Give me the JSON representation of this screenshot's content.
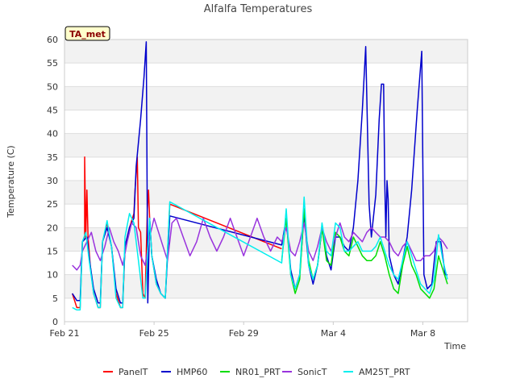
{
  "chart_data": {
    "type": "line",
    "title": "Alfalfa Temperatures",
    "xlabel": "Time",
    "ylabel": "Temperature (C)",
    "annotation": "TA_met",
    "ylim": [
      0,
      60
    ],
    "y_ticks": [
      0,
      5,
      10,
      15,
      20,
      25,
      30,
      35,
      40,
      45,
      50,
      55,
      60
    ],
    "xlim": [
      0,
      18
    ],
    "x_ticks": [
      {
        "value": 0,
        "label": "Feb 21"
      },
      {
        "value": 4,
        "label": "Feb 25"
      },
      {
        "value": 8,
        "label": "Feb 29"
      },
      {
        "value": 12,
        "label": "Mar 4"
      },
      {
        "value": 16,
        "label": "Mar 8"
      }
    ],
    "x_unit": "days since Feb 21",
    "grid": true,
    "legend_position": "bottom",
    "series": [
      {
        "name": "PanelT",
        "color": "#ff0000",
        "points": [
          [
            0.35,
            6
          ],
          [
            0.55,
            3
          ],
          [
            0.7,
            3
          ],
          [
            0.8,
            17
          ],
          [
            0.9,
            18
          ],
          [
            0.9,
            35
          ],
          [
            0.95,
            18
          ],
          [
            1.0,
            28
          ],
          [
            1.05,
            18
          ],
          [
            1.15,
            12
          ],
          [
            1.3,
            6
          ],
          [
            1.5,
            3
          ],
          [
            1.6,
            3
          ],
          [
            1.7,
            17
          ],
          [
            1.9,
            21
          ],
          [
            2.1,
            16
          ],
          [
            2.3,
            6
          ],
          [
            2.5,
            3
          ],
          [
            2.6,
            3
          ],
          [
            2.7,
            16
          ],
          [
            2.9,
            20
          ],
          [
            3.1,
            23
          ],
          [
            3.15,
            28
          ],
          [
            3.25,
            35
          ],
          [
            3.3,
            20
          ],
          [
            3.4,
            19
          ],
          [
            3.5,
            6
          ],
          [
            3.6,
            5
          ],
          [
            3.7,
            24
          ],
          [
            3.75,
            28
          ],
          [
            3.8,
            22
          ],
          [
            3.9,
            14
          ],
          [
            4.1,
            8
          ],
          [
            4.3,
            6
          ],
          [
            4.5,
            5
          ],
          [
            4.7,
            25
          ],
          [
            9.7,
            15.5
          ]
        ]
      },
      {
        "name": "HMP60",
        "color": "#0000cc",
        "points": [
          [
            0.35,
            6
          ],
          [
            0.55,
            4.5
          ],
          [
            0.7,
            4.5
          ],
          [
            0.8,
            17
          ],
          [
            1.0,
            18
          ],
          [
            1.15,
            12
          ],
          [
            1.3,
            7
          ],
          [
            1.5,
            4
          ],
          [
            1.6,
            4
          ],
          [
            1.7,
            17
          ],
          [
            1.9,
            20
          ],
          [
            2.1,
            16
          ],
          [
            2.3,
            7
          ],
          [
            2.5,
            4
          ],
          [
            2.6,
            4
          ],
          [
            2.7,
            16
          ],
          [
            2.9,
            20
          ],
          [
            3.1,
            22
          ],
          [
            3.2,
            33
          ],
          [
            3.4,
            43
          ],
          [
            3.55,
            52
          ],
          [
            3.65,
            59.5
          ],
          [
            3.72,
            4
          ],
          [
            3.8,
            22
          ],
          [
            3.9,
            14
          ],
          [
            4.1,
            9
          ],
          [
            4.3,
            6
          ],
          [
            4.5,
            5
          ],
          [
            4.7,
            22.5
          ],
          [
            9.7,
            16.3
          ],
          [
            9.9,
            22
          ],
          [
            10.1,
            11
          ],
          [
            10.3,
            7
          ],
          [
            10.5,
            10
          ],
          [
            10.7,
            23
          ],
          [
            10.9,
            12
          ],
          [
            11.1,
            8
          ],
          [
            11.3,
            12
          ],
          [
            11.5,
            20
          ],
          [
            11.7,
            14
          ],
          [
            11.9,
            11
          ],
          [
            12.1,
            18
          ],
          [
            12.3,
            18
          ],
          [
            12.5,
            16
          ],
          [
            12.7,
            15
          ],
          [
            12.9,
            20
          ],
          [
            13.1,
            30
          ],
          [
            13.3,
            45
          ],
          [
            13.45,
            58.5
          ],
          [
            13.6,
            25
          ],
          [
            13.7,
            18
          ],
          [
            13.9,
            27
          ],
          [
            14.05,
            43
          ],
          [
            14.15,
            50.5
          ],
          [
            14.25,
            50.5
          ],
          [
            14.3,
            30
          ],
          [
            14.35,
            18
          ],
          [
            14.4,
            30
          ],
          [
            14.45,
            26
          ],
          [
            14.5,
            14
          ],
          [
            14.7,
            10
          ],
          [
            14.9,
            8
          ],
          [
            15.1,
            13
          ],
          [
            15.3,
            18
          ],
          [
            15.5,
            28
          ],
          [
            15.75,
            45
          ],
          [
            15.95,
            57.5
          ],
          [
            16.05,
            10
          ],
          [
            16.2,
            7
          ],
          [
            16.4,
            8
          ],
          [
            16.6,
            17
          ],
          [
            16.8,
            17
          ],
          [
            17.0,
            10
          ],
          [
            17.1,
            10
          ]
        ]
      },
      {
        "name": "NR01_PRT",
        "color": "#00dd00",
        "points": [
          [
            9.7,
            13
          ],
          [
            9.9,
            22
          ],
          [
            10.1,
            10
          ],
          [
            10.3,
            6
          ],
          [
            10.5,
            9
          ],
          [
            10.7,
            24
          ],
          [
            10.9,
            13
          ],
          [
            11.1,
            9
          ],
          [
            11.3,
            12
          ],
          [
            11.5,
            20
          ],
          [
            11.7,
            13
          ],
          [
            11.9,
            12
          ],
          [
            12.1,
            19
          ],
          [
            12.3,
            18
          ],
          [
            12.5,
            15
          ],
          [
            12.7,
            14
          ],
          [
            12.9,
            18
          ],
          [
            13.1,
            16
          ],
          [
            13.3,
            14
          ],
          [
            13.5,
            13
          ],
          [
            13.7,
            13
          ],
          [
            13.9,
            14
          ],
          [
            14.1,
            17
          ],
          [
            14.3,
            14
          ],
          [
            14.5,
            10
          ],
          [
            14.7,
            7
          ],
          [
            14.9,
            6
          ],
          [
            15.1,
            12
          ],
          [
            15.3,
            16
          ],
          [
            15.5,
            12
          ],
          [
            15.7,
            10
          ],
          [
            15.9,
            7
          ],
          [
            16.1,
            6
          ],
          [
            16.3,
            5
          ],
          [
            16.5,
            7
          ],
          [
            16.7,
            14
          ],
          [
            16.9,
            11
          ],
          [
            17.1,
            8
          ]
        ]
      },
      {
        "name": "SonicT",
        "color": "#9933dd",
        "points": [
          [
            0.35,
            12
          ],
          [
            0.55,
            11
          ],
          [
            0.7,
            12
          ],
          [
            0.8,
            15
          ],
          [
            1.0,
            17
          ],
          [
            1.2,
            19
          ],
          [
            1.4,
            15
          ],
          [
            1.6,
            13
          ],
          [
            1.8,
            16
          ],
          [
            2.0,
            20
          ],
          [
            2.2,
            17
          ],
          [
            2.4,
            15
          ],
          [
            2.6,
            12
          ],
          [
            2.8,
            17
          ],
          [
            3.0,
            21
          ],
          [
            3.2,
            20
          ],
          [
            3.4,
            14
          ],
          [
            3.6,
            12
          ],
          [
            3.8,
            18
          ],
          [
            4.0,
            22
          ],
          [
            4.2,
            19
          ],
          [
            4.4,
            16
          ],
          [
            4.6,
            13
          ],
          [
            4.8,
            21
          ],
          [
            5.0,
            22
          ],
          [
            5.3,
            18
          ],
          [
            5.6,
            14
          ],
          [
            5.9,
            17
          ],
          [
            6.2,
            22
          ],
          [
            6.5,
            18
          ],
          [
            6.8,
            15
          ],
          [
            7.1,
            18
          ],
          [
            7.4,
            22
          ],
          [
            7.7,
            18
          ],
          [
            8.0,
            14
          ],
          [
            8.3,
            18
          ],
          [
            8.6,
            22
          ],
          [
            8.9,
            18
          ],
          [
            9.2,
            15
          ],
          [
            9.5,
            18
          ],
          [
            9.7,
            17
          ],
          [
            9.9,
            20
          ],
          [
            10.1,
            15
          ],
          [
            10.3,
            14
          ],
          [
            10.5,
            17
          ],
          [
            10.7,
            21
          ],
          [
            10.9,
            15
          ],
          [
            11.1,
            13
          ],
          [
            11.3,
            16
          ],
          [
            11.5,
            20
          ],
          [
            11.7,
            17
          ],
          [
            11.9,
            15
          ],
          [
            12.1,
            18
          ],
          [
            12.3,
            21
          ],
          [
            12.5,
            18
          ],
          [
            12.7,
            17
          ],
          [
            12.9,
            19
          ],
          [
            13.1,
            18
          ],
          [
            13.3,
            17
          ],
          [
            13.5,
            19
          ],
          [
            13.7,
            20
          ],
          [
            13.9,
            19
          ],
          [
            14.1,
            18
          ],
          [
            14.3,
            18
          ],
          [
            14.5,
            17
          ],
          [
            14.7,
            15
          ],
          [
            14.9,
            14
          ],
          [
            15.1,
            16
          ],
          [
            15.3,
            17
          ],
          [
            15.5,
            15
          ],
          [
            15.7,
            13
          ],
          [
            15.9,
            13
          ],
          [
            16.1,
            14
          ],
          [
            16.3,
            14
          ],
          [
            16.5,
            15
          ],
          [
            16.7,
            18
          ],
          [
            16.9,
            17
          ],
          [
            17.1,
            15.5
          ]
        ]
      },
      {
        "name": "AM25T_PRT",
        "color": "#00eeee",
        "points": [
          [
            0.35,
            3
          ],
          [
            0.55,
            2.5
          ],
          [
            0.7,
            2.5
          ],
          [
            0.8,
            17
          ],
          [
            0.95,
            19
          ],
          [
            1.1,
            13
          ],
          [
            1.3,
            6
          ],
          [
            1.5,
            3
          ],
          [
            1.6,
            3
          ],
          [
            1.7,
            17
          ],
          [
            1.9,
            21.5
          ],
          [
            2.1,
            16
          ],
          [
            2.3,
            5
          ],
          [
            2.5,
            3
          ],
          [
            2.6,
            3
          ],
          [
            2.7,
            18
          ],
          [
            2.9,
            23
          ],
          [
            3.1,
            21
          ],
          [
            3.3,
            13
          ],
          [
            3.5,
            5
          ],
          [
            3.6,
            5
          ],
          [
            3.8,
            22
          ],
          [
            3.9,
            14
          ],
          [
            4.1,
            8
          ],
          [
            4.3,
            6
          ],
          [
            4.5,
            5
          ],
          [
            4.7,
            25.5
          ],
          [
            9.7,
            12.5
          ],
          [
            9.9,
            24
          ],
          [
            10.1,
            10
          ],
          [
            10.3,
            7
          ],
          [
            10.5,
            10
          ],
          [
            10.7,
            26.5
          ],
          [
            10.9,
            12
          ],
          [
            11.1,
            9
          ],
          [
            11.3,
            12
          ],
          [
            11.5,
            21
          ],
          [
            11.7,
            15
          ],
          [
            11.9,
            14
          ],
          [
            12.1,
            21
          ],
          [
            12.3,
            20
          ],
          [
            12.5,
            15
          ],
          [
            12.7,
            15
          ],
          [
            12.9,
            16
          ],
          [
            13.1,
            17
          ],
          [
            13.3,
            15
          ],
          [
            13.5,
            15
          ],
          [
            13.7,
            15
          ],
          [
            13.9,
            16
          ],
          [
            14.1,
            18
          ],
          [
            14.3,
            15
          ],
          [
            14.5,
            12
          ],
          [
            14.7,
            10
          ],
          [
            14.9,
            9
          ],
          [
            15.1,
            13
          ],
          [
            15.3,
            17
          ],
          [
            15.5,
            14
          ],
          [
            15.7,
            11
          ],
          [
            15.9,
            8
          ],
          [
            16.1,
            7
          ],
          [
            16.3,
            6
          ],
          [
            16.5,
            9
          ],
          [
            16.7,
            18.5
          ],
          [
            16.9,
            13
          ],
          [
            17.1,
            9
          ]
        ]
      }
    ]
  }
}
